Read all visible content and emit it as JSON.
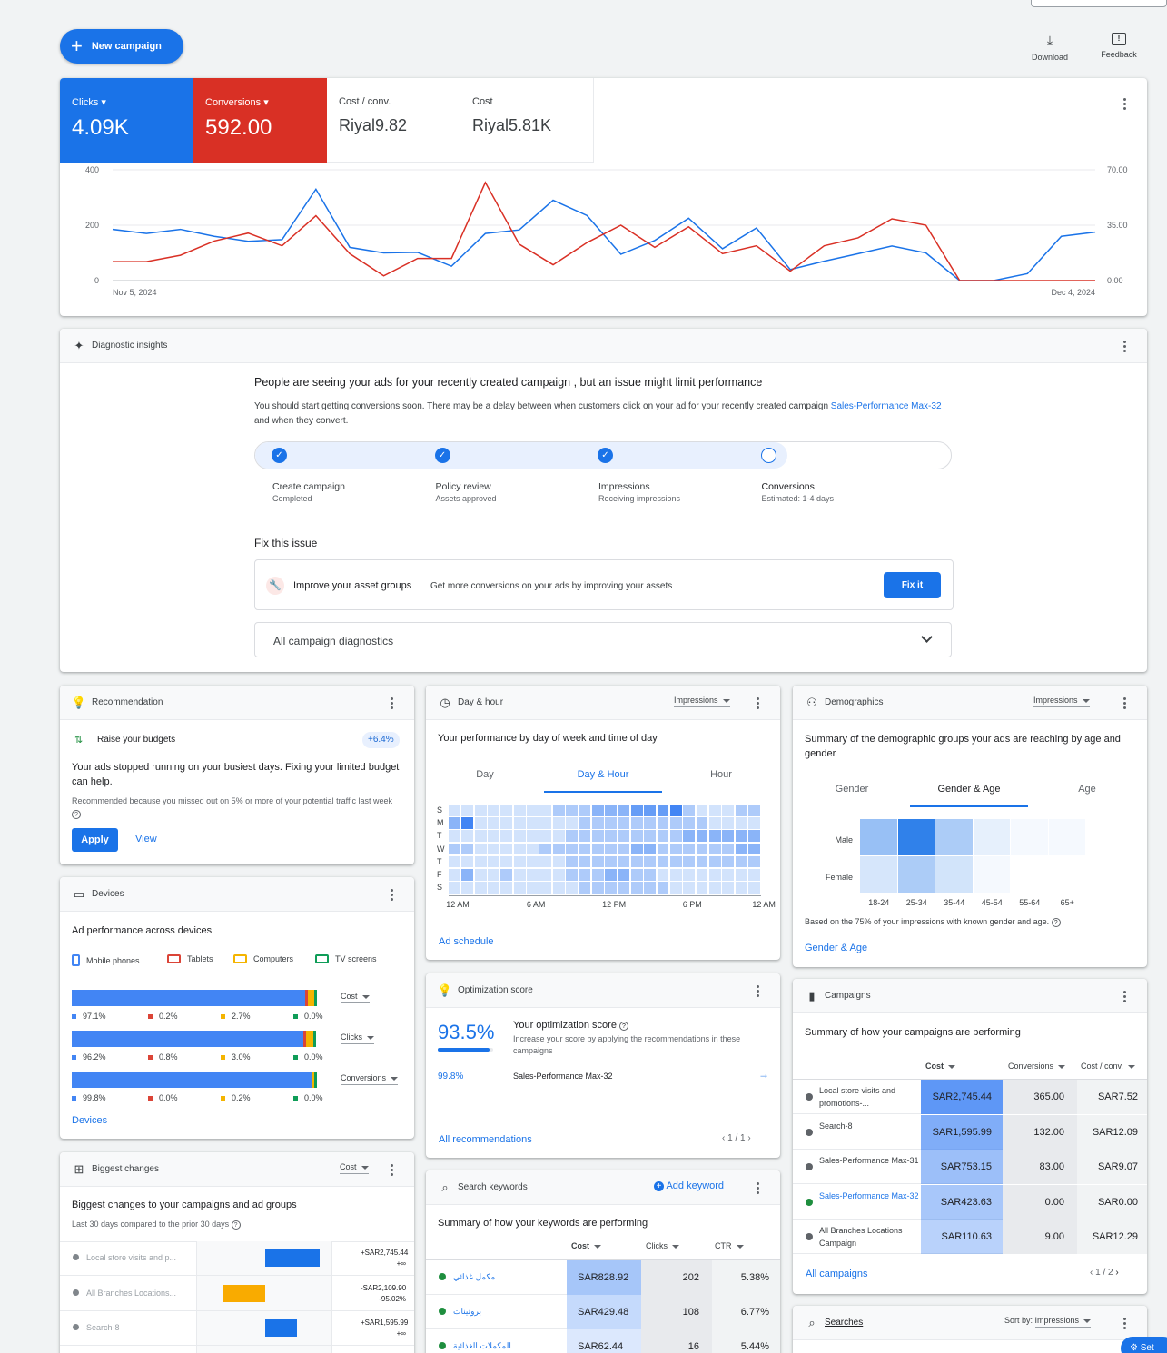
{
  "top": {
    "new_campaign": "New campaign",
    "download": "Download",
    "feedback": "Feedback"
  },
  "metrics": [
    {
      "label": "Clicks",
      "value": "4.09K",
      "bg": "#1a73e8"
    },
    {
      "label": "Conversions",
      "value": "592.00",
      "bg": "#d93025"
    },
    {
      "label": "Cost / conv.",
      "value": "Riyal9.82"
    },
    {
      "label": "Cost",
      "value": "Riyal5.81K"
    }
  ],
  "chart_data": {
    "type": "line",
    "x_start": "Nov 5, 2024",
    "x_end": "Dec 4, 2024",
    "left_ticks": [
      "400",
      "200",
      "0"
    ],
    "right_ticks": [
      "70.00",
      "35.00",
      "0.00"
    ],
    "ylim_left": [
      0,
      400
    ],
    "ylim_right": [
      0,
      70
    ],
    "series": [
      {
        "name": "Clicks",
        "axis": "left",
        "color": "#1a73e8",
        "values": [
          185,
          170,
          185,
          160,
          142,
          148,
          330,
          120,
          100,
          102,
          52,
          170,
          183,
          290,
          235,
          95,
          145,
          225,
          115,
          190,
          40,
          70,
          97,
          125,
          100,
          0,
          0,
          25,
          160,
          175
        ]
      },
      {
        "name": "Conversions",
        "axis": "right",
        "color": "#d93025",
        "values": [
          12,
          12,
          16,
          25,
          30,
          22,
          41,
          17,
          3,
          14,
          14,
          62,
          23,
          10,
          24,
          35,
          21,
          34,
          17,
          22,
          6,
          22,
          27,
          39,
          35,
          0,
          0,
          0,
          0,
          0
        ]
      }
    ]
  },
  "diag": {
    "title": "Diagnostic insights",
    "headline": "People are seeing your ads for your recently created campaign , but an issue might limit performance",
    "body": "You should start getting conversions soon. There may be a delay between when customers click on your ad for your recently created campaign ",
    "body_link": "Sales-Performance Max-32",
    "body_end": " and when they convert.",
    "steps": [
      {
        "t": "Create campaign",
        "s": "Completed"
      },
      {
        "t": "Policy review",
        "s": "Assets approved"
      },
      {
        "t": "Impressions",
        "s": "Receiving impressions"
      },
      {
        "t": "Conversions",
        "s": "Estimated: 1-4 days"
      }
    ],
    "fix_title": "Fix this issue",
    "fix_label": "Improve your asset groups",
    "fix_desc": "Get more conversions on your ads by improving your assets",
    "fix_btn": "Fix it",
    "all": "All campaign diagnostics"
  },
  "rec": {
    "title": "Recommendation",
    "item": "Raise your budgets",
    "badge": "+6.4%",
    "text": "Your ads stopped running on your busiest days. Fixing your limited budget can help.",
    "note": "Recommended because you missed out on 5% or more of your potential traffic last week",
    "apply": "Apply",
    "view": "View"
  },
  "devices": {
    "title": "Devices",
    "subtitle": "Ad performance across devices",
    "legend": [
      "Mobile phones",
      "Tablets",
      "Computers",
      "TV screens"
    ],
    "colors": [
      "#4285f4",
      "#db4437",
      "#f4b400",
      "#0f9d58"
    ],
    "rows": [
      {
        "metric": "Cost",
        "shares": [
          97.1,
          0.2,
          2.7,
          0.0
        ],
        "labels": [
          "97.1%",
          "0.2%",
          "2.7%",
          "0.0%"
        ]
      },
      {
        "metric": "Clicks",
        "shares": [
          96.2,
          0.8,
          3.0,
          0.0
        ],
        "labels": [
          "96.2%",
          "0.8%",
          "3.0%",
          "0.0%"
        ]
      },
      {
        "metric": "Conversions",
        "shares": [
          99.8,
          0.0,
          0.2,
          0.0
        ],
        "labels": [
          "99.8%",
          "0.0%",
          "0.2%",
          "0.0%"
        ]
      }
    ],
    "link": "Devices"
  },
  "changes": {
    "title": "Biggest changes",
    "metric": "Cost",
    "subtitle": "Biggest changes to your campaigns and ad groups",
    "note": "Last 30 days compared to the prior 30 days",
    "rows": [
      {
        "name": "Local store visits and p...",
        "v1": "+SAR2,745.44",
        "v2": "+∞",
        "change": 2745.44
      },
      {
        "name": "All Branches Locations...",
        "v1": "-SAR2,109.90",
        "v2": "-95.02%",
        "change": -2109.9
      },
      {
        "name": "Search-8",
        "v1": "+SAR1,595.99",
        "v2": "+∞",
        "change": 1595.99
      }
    ]
  },
  "dayhour": {
    "title": "Day & hour",
    "metric": "Impressions",
    "subtitle": "Your performance by day of week and time of day",
    "tabs": [
      "Day",
      "Day & Hour",
      "Hour"
    ],
    "days": [
      "S",
      "M",
      "T",
      "W",
      "T",
      "F",
      "S"
    ],
    "hours": [
      "12 AM",
      "6 AM",
      "12 PM",
      "6 PM",
      "12 AM"
    ],
    "link": "Ad schedule",
    "grid": [
      [
        1,
        1,
        1,
        1,
        1,
        1,
        1,
        1,
        2,
        2,
        2,
        3,
        3,
        3,
        4,
        4,
        4,
        5,
        2,
        1,
        1,
        1,
        2,
        2
      ],
      [
        3,
        5,
        1,
        1,
        1,
        1,
        1,
        1,
        1,
        1,
        2,
        2,
        2,
        2,
        2,
        2,
        2,
        2,
        2,
        2,
        1,
        1,
        1,
        1
      ],
      [
        1,
        1,
        1,
        1,
        1,
        1,
        1,
        1,
        1,
        2,
        2,
        2,
        2,
        2,
        2,
        2,
        2,
        2,
        3,
        3,
        3,
        3,
        3,
        3
      ],
      [
        2,
        2,
        1,
        1,
        1,
        1,
        1,
        2,
        2,
        2,
        2,
        2,
        2,
        2,
        3,
        3,
        2,
        2,
        2,
        2,
        2,
        2,
        3,
        3
      ],
      [
        1,
        1,
        1,
        1,
        1,
        1,
        1,
        1,
        1,
        2,
        2,
        2,
        2,
        2,
        2,
        2,
        2,
        2,
        2,
        2,
        2,
        2,
        2,
        2
      ],
      [
        1,
        3,
        1,
        1,
        2,
        1,
        1,
        1,
        1,
        2,
        2,
        2,
        3,
        3,
        2,
        2,
        1,
        1,
        1,
        1,
        1,
        1,
        1,
        1
      ],
      [
        1,
        1,
        1,
        1,
        1,
        1,
        1,
        1,
        1,
        1,
        2,
        2,
        2,
        2,
        2,
        2,
        2,
        1,
        1,
        1,
        1,
        1,
        1,
        1
      ]
    ]
  },
  "opt": {
    "title": "Optimization score",
    "score": "93.5%",
    "score_value": 93.5,
    "heading": "Your optimization score",
    "desc": "Increase your score by applying the recommendations in these campaigns",
    "camp_score": "99.8%",
    "camp_name": "Sales-Performance Max-32",
    "link": "All recommendations",
    "pager": "1 / 1"
  },
  "kw": {
    "title": "Search keywords",
    "add": "Add keyword",
    "subtitle": "Summary of how your keywords are performing",
    "cols": [
      "Cost",
      "Clicks",
      "CTR"
    ],
    "rows": [
      {
        "name": "مكمل غذائي",
        "cost": "SAR828.92",
        "clicks": "202",
        "ctr": "5.38%"
      },
      {
        "name": "بروتينات",
        "cost": "SAR429.48",
        "clicks": "108",
        "ctr": "6.77%"
      },
      {
        "name": "المكملات الغذائية",
        "cost": "SAR62.44",
        "clicks": "16",
        "ctr": "5.44%"
      }
    ]
  },
  "demo": {
    "title": "Demographics",
    "metric": "Impressions",
    "subtitle": "Summary of the demographic groups your ads are reaching by age and gender",
    "tabs": [
      "Gender",
      "Gender & Age",
      "Age"
    ],
    "genders": [
      "Male",
      "Female"
    ],
    "ages": [
      "18-24",
      "25-34",
      "35-44",
      "45-54",
      "55-64",
      "65+"
    ],
    "grid": [
      [
        0.5,
        1.0,
        0.4,
        0.12,
        0.04,
        0.03
      ],
      [
        0.2,
        0.4,
        0.22,
        0.05,
        0,
        0
      ]
    ],
    "note": "Based on the 75% of your impressions with known gender and age.",
    "link": "Gender & Age"
  },
  "camps": {
    "title": "Campaigns",
    "subtitle": "Summary of how your campaigns are performing",
    "cols": [
      "Cost",
      "Conversions",
      "Cost / conv."
    ],
    "rows": [
      {
        "name": "Local store visits and promotions-...",
        "cost": "SAR2,745.44",
        "conv": "365.00",
        "cpc": "SAR7.52",
        "dot": "#5f6368",
        "shade": 1.0
      },
      {
        "name": "Search-8",
        "cost": "SAR1,595.99",
        "conv": "132.00",
        "cpc": "SAR12.09",
        "dot": "#5f6368",
        "shade": 0.7
      },
      {
        "name": "Sales-Performance Max-31",
        "cost": "SAR753.15",
        "conv": "83.00",
        "cpc": "SAR9.07",
        "dot": "#5f6368",
        "shade": 0.45
      },
      {
        "name": "Sales-Performance Max-32",
        "cost": "SAR423.63",
        "conv": "0.00",
        "cpc": "SAR0.00",
        "dot": "#1e8e3e",
        "shade": 0.35,
        "link": true
      },
      {
        "name": "All Branches Locations Campaign",
        "cost": "SAR110.63",
        "conv": "9.00",
        "cpc": "SAR12.29",
        "dot": "#5f6368",
        "shade": 0.2
      }
    ],
    "link": "All campaigns",
    "pager": "1 / 2"
  },
  "searches": {
    "title": "Searches",
    "sort_label": "Sort by:",
    "sort": "Impressions"
  }
}
